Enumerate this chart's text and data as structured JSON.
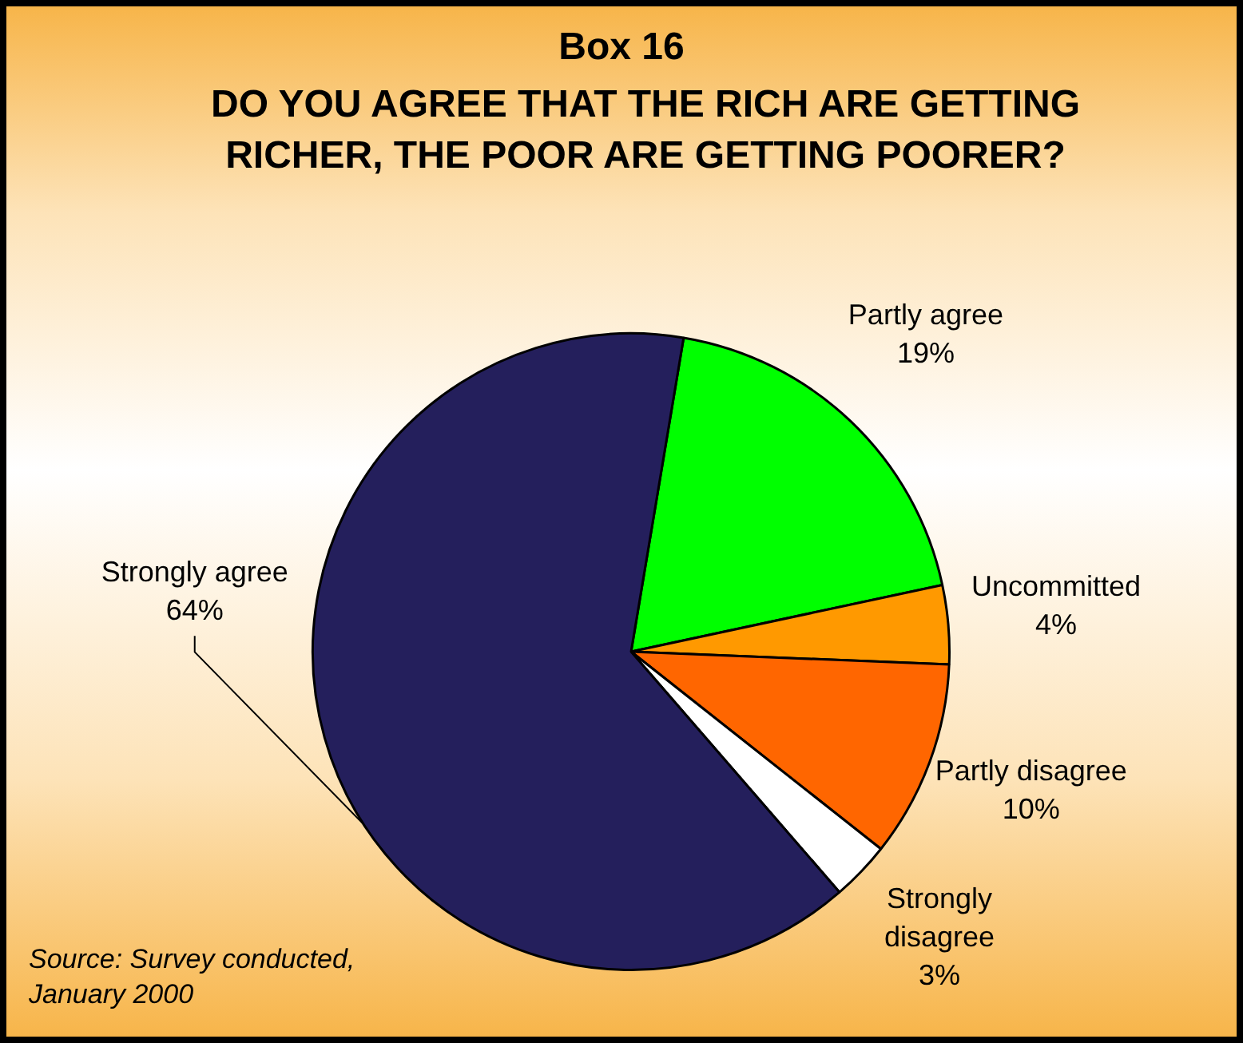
{
  "chart_data": {
    "type": "pie",
    "title": "Box 16",
    "subtitle": "DO YOU AGREE THAT THE RICH ARE GETTING RICHER, THE POOR ARE GETTING POORER?",
    "categories": [
      "Partly agree",
      "Uncommitted",
      "Partly disagree",
      "Strongly disagree",
      "Strongly agree"
    ],
    "values": [
      19,
      4,
      10,
      3,
      64
    ],
    "value_labels": [
      "19%",
      "4%",
      "10%",
      "3%",
      "64%"
    ],
    "colors": [
      "#00ff00",
      "#ff9900",
      "#ff6600",
      "#ffffff",
      "#241f5c"
    ],
    "legend": false,
    "annotations": [
      "Source: Survey conducted, January 2000"
    ]
  }
}
